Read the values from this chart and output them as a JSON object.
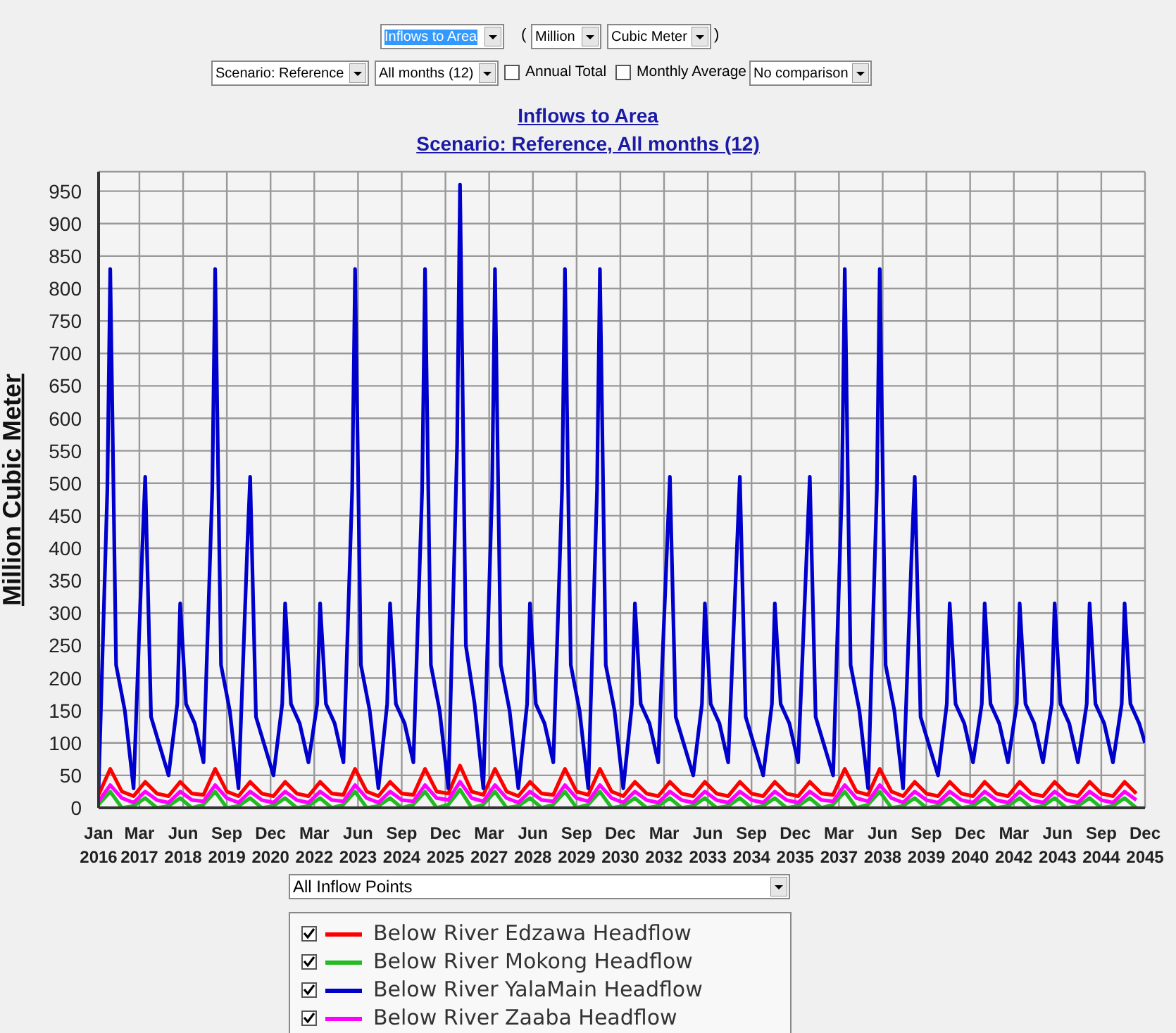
{
  "chart_data": {
    "type": "line",
    "title": "Inflows to Area",
    "subtitle": "Scenario: Reference, All months (12)",
    "ylabel": "Million Cubic Meter",
    "annotations": [
      "Inflows to Area",
      "(",
      "Million",
      "Cubic Meter",
      ")",
      "Scenario: Reference",
      "All months (12)",
      "Annual Total",
      "Monthly Average",
      "No comparison",
      "All Inflow Points"
    ],
    "xlim": [
      "2016-01",
      "2045-12"
    ],
    "ylim": [
      0,
      980
    ],
    "yticks": [
      0,
      50,
      100,
      150,
      200,
      250,
      300,
      350,
      400,
      450,
      500,
      550,
      600,
      650,
      700,
      750,
      800,
      850,
      900,
      950
    ],
    "xticks": [
      {
        "value": "2016-01",
        "label": "Jan 2016"
      },
      {
        "value": "2017-03",
        "label": "Mar 2017"
      },
      {
        "value": "2018-06",
        "label": "Jun 2018"
      },
      {
        "value": "2019-09",
        "label": "Sep 2019"
      },
      {
        "value": "2020-12",
        "label": "Dec 2020"
      },
      {
        "value": "2022-03",
        "label": "Mar 2022"
      },
      {
        "value": "2023-06",
        "label": "Jun 2023"
      },
      {
        "value": "2024-09",
        "label": "Sep 2024"
      },
      {
        "value": "2025-12",
        "label": "Dec 2025"
      },
      {
        "value": "2027-03",
        "label": "Mar 2027"
      },
      {
        "value": "2028-06",
        "label": "Jun 2028"
      },
      {
        "value": "2029-09",
        "label": "Sep 2029"
      },
      {
        "value": "2030-12",
        "label": "Dec 2030"
      },
      {
        "value": "2032-03",
        "label": "Mar 2032"
      },
      {
        "value": "2033-06",
        "label": "Jun 2033"
      },
      {
        "value": "2034-09",
        "label": "Sep 2034"
      },
      {
        "value": "2035-12",
        "label": "Dec 2035"
      },
      {
        "value": "2037-03",
        "label": "Mar 2037"
      },
      {
        "value": "2038-06",
        "label": "Jun 2038"
      },
      {
        "value": "2039-09",
        "label": "Sep 2039"
      },
      {
        "value": "2040-12",
        "label": "Dec 2040"
      },
      {
        "value": "2042-03",
        "label": "Mar 2042"
      },
      {
        "value": "2043-06",
        "label": "Jun 2043"
      },
      {
        "value": "2044-09",
        "label": "Sep 2044"
      },
      {
        "value": "2045-12",
        "label": "Dec 2045"
      }
    ],
    "grid": true,
    "legend": "bottom",
    "x": [
      "2016-01",
      "2016-05",
      "2016-09",
      "2017-01",
      "2017-05",
      "2017-09",
      "2018-01",
      "2018-05",
      "2018-09",
      "2019-01",
      "2019-05",
      "2019-09",
      "2020-01",
      "2020-05",
      "2020-09",
      "2021-01",
      "2021-05",
      "2021-09",
      "2022-01",
      "2022-05",
      "2022-09",
      "2023-01",
      "2023-05",
      "2023-09",
      "2024-01",
      "2024-05",
      "2024-09",
      "2025-01",
      "2025-05",
      "2025-09",
      "2026-01",
      "2026-05",
      "2026-09",
      "2027-01",
      "2027-05",
      "2027-09",
      "2028-01",
      "2028-05",
      "2028-09",
      "2029-01",
      "2029-05",
      "2029-09",
      "2030-01",
      "2030-05",
      "2030-09",
      "2031-01",
      "2031-05",
      "2031-09",
      "2032-01",
      "2032-05",
      "2032-09",
      "2033-01",
      "2033-05",
      "2033-09",
      "2034-01",
      "2034-05",
      "2034-09",
      "2035-01",
      "2035-05",
      "2035-09",
      "2036-01",
      "2036-05",
      "2036-09",
      "2037-01",
      "2037-05",
      "2037-09",
      "2038-01",
      "2038-05",
      "2038-09",
      "2039-01",
      "2039-05",
      "2039-09",
      "2040-01",
      "2040-05",
      "2040-09",
      "2041-01",
      "2041-05",
      "2041-09",
      "2042-01",
      "2042-05",
      "2042-09",
      "2043-01",
      "2043-05",
      "2043-09",
      "2044-01",
      "2044-05",
      "2044-09",
      "2045-01",
      "2045-05",
      "2045-09"
    ],
    "series": [
      {
        "name": "Below River Edzawa Headflow",
        "color": "#ff0000",
        "values": [
          20,
          60,
          25,
          18,
          40,
          22,
          18,
          40,
          22,
          20,
          60,
          25,
          18,
          40,
          22,
          18,
          40,
          22,
          18,
          40,
          22,
          20,
          60,
          25,
          18,
          40,
          22,
          20,
          60,
          25,
          22,
          65,
          25,
          20,
          60,
          25,
          18,
          40,
          22,
          20,
          60,
          25,
          20,
          60,
          25,
          18,
          40,
          22,
          18,
          40,
          22,
          18,
          40,
          22,
          18,
          40,
          22,
          18,
          40,
          22,
          18,
          40,
          22,
          20,
          60,
          25,
          20,
          60,
          25,
          18,
          40,
          22,
          18,
          40,
          22,
          18,
          40,
          22,
          18,
          40,
          22,
          18,
          40,
          22,
          18,
          40,
          22,
          18,
          40,
          22
        ]
      },
      {
        "name": "Below River Mokong Headflow",
        "color": "#22bb22",
        "values": [
          5,
          25,
          0,
          3,
          15,
          0,
          3,
          15,
          0,
          5,
          25,
          0,
          3,
          15,
          0,
          3,
          15,
          0,
          3,
          15,
          0,
          5,
          25,
          0,
          3,
          15,
          0,
          5,
          25,
          0,
          5,
          28,
          0,
          5,
          25,
          0,
          3,
          15,
          0,
          5,
          25,
          0,
          5,
          25,
          0,
          3,
          15,
          0,
          3,
          15,
          0,
          3,
          15,
          0,
          3,
          15,
          0,
          3,
          15,
          0,
          3,
          15,
          0,
          5,
          25,
          0,
          5,
          25,
          0,
          3,
          15,
          0,
          3,
          15,
          0,
          3,
          15,
          0,
          3,
          15,
          0,
          3,
          15,
          0,
          3,
          15,
          0,
          3,
          15,
          0
        ]
      },
      {
        "name": "Below River YalaMain Headflow",
        "color": "#0000cc",
        "x": [
          "2016-01",
          "2016-04",
          "2016-05",
          "2016-07",
          "2016-10",
          "2017-01",
          "2017-04",
          "2017-05",
          "2017-07",
          "2017-10",
          "2018-01",
          "2018-04",
          "2018-05",
          "2018-07",
          "2018-10",
          "2019-01",
          "2019-04",
          "2019-05",
          "2019-07",
          "2019-10",
          "2020-01",
          "2020-04",
          "2020-05",
          "2020-07",
          "2020-10",
          "2021-01",
          "2021-04",
          "2021-05",
          "2021-07",
          "2021-10",
          "2022-01",
          "2022-04",
          "2022-05",
          "2022-07",
          "2022-10",
          "2023-01",
          "2023-04",
          "2023-05",
          "2023-07",
          "2023-10",
          "2024-01",
          "2024-04",
          "2024-05",
          "2024-07",
          "2024-10",
          "2025-01",
          "2025-04",
          "2025-05",
          "2025-07",
          "2025-10",
          "2026-01",
          "2026-04",
          "2026-05",
          "2026-07",
          "2026-10",
          "2027-01",
          "2027-04",
          "2027-05",
          "2027-07",
          "2027-10",
          "2028-01",
          "2028-04",
          "2028-05",
          "2028-07",
          "2028-10",
          "2029-01",
          "2029-04",
          "2029-05",
          "2029-07",
          "2029-10",
          "2030-01",
          "2030-04",
          "2030-05",
          "2030-07",
          "2030-10",
          "2031-01",
          "2031-04",
          "2031-05",
          "2031-07",
          "2031-10",
          "2032-01",
          "2032-04",
          "2032-05",
          "2032-07",
          "2032-10",
          "2033-01",
          "2033-04",
          "2033-05",
          "2033-07",
          "2033-10",
          "2034-01",
          "2034-04",
          "2034-05",
          "2034-07",
          "2034-10",
          "2035-01",
          "2035-04",
          "2035-05",
          "2035-07",
          "2035-10",
          "2036-01",
          "2036-04",
          "2036-05",
          "2036-07",
          "2036-10",
          "2037-01",
          "2037-04",
          "2037-05",
          "2037-07",
          "2037-10",
          "2038-01",
          "2038-04",
          "2038-05",
          "2038-07",
          "2038-10",
          "2039-01",
          "2039-04",
          "2039-05",
          "2039-07",
          "2039-10",
          "2040-01",
          "2040-04",
          "2040-05",
          "2040-07",
          "2040-10",
          "2041-01",
          "2041-04",
          "2041-05",
          "2041-07",
          "2041-10",
          "2042-01",
          "2042-04",
          "2042-05",
          "2042-07",
          "2042-10",
          "2043-01",
          "2043-04",
          "2043-05",
          "2043-07",
          "2043-10",
          "2044-01",
          "2044-04",
          "2044-05",
          "2044-07",
          "2044-10",
          "2045-01",
          "2045-04",
          "2045-05",
          "2045-07",
          "2045-10",
          "2045-12"
        ],
        "values": [
          30,
          490,
          830,
          220,
          150,
          30,
          400,
          510,
          140,
          95,
          50,
          160,
          315,
          160,
          130,
          70,
          490,
          830,
          220,
          150,
          30,
          400,
          510,
          140,
          95,
          50,
          160,
          315,
          160,
          130,
          70,
          160,
          315,
          160,
          130,
          70,
          490,
          830,
          220,
          150,
          30,
          160,
          315,
          160,
          130,
          70,
          490,
          830,
          220,
          150,
          30,
          560,
          960,
          250,
          160,
          30,
          490,
          830,
          220,
          150,
          30,
          160,
          315,
          160,
          130,
          70,
          490,
          830,
          220,
          150,
          30,
          490,
          830,
          220,
          150,
          30,
          160,
          315,
          160,
          130,
          70,
          400,
          510,
          140,
          95,
          50,
          160,
          315,
          160,
          130,
          70,
          400,
          510,
          140,
          95,
          50,
          160,
          315,
          160,
          130,
          70,
          400,
          510,
          140,
          95,
          50,
          490,
          830,
          220,
          150,
          30,
          490,
          830,
          220,
          150,
          30,
          400,
          510,
          140,
          95,
          50,
          160,
          315,
          160,
          130,
          70,
          160,
          315,
          160,
          130,
          70,
          160,
          315,
          160,
          130,
          70,
          160,
          315,
          160,
          130,
          70,
          160,
          315,
          160,
          130,
          70,
          160,
          315,
          160,
          130,
          100
        ]
      },
      {
        "name": "Below River Zaaba Headflow",
        "color": "#ff00ff",
        "values": [
          10,
          35,
          15,
          8,
          25,
          12,
          8,
          25,
          12,
          10,
          35,
          15,
          8,
          25,
          12,
          8,
          25,
          12,
          8,
          25,
          12,
          10,
          35,
          15,
          8,
          25,
          12,
          10,
          35,
          15,
          12,
          40,
          15,
          10,
          35,
          15,
          8,
          25,
          12,
          10,
          35,
          15,
          10,
          35,
          15,
          8,
          25,
          12,
          8,
          25,
          12,
          8,
          25,
          12,
          8,
          25,
          12,
          8,
          25,
          12,
          8,
          25,
          12,
          10,
          35,
          15,
          10,
          35,
          15,
          8,
          25,
          12,
          8,
          25,
          12,
          8,
          25,
          12,
          8,
          25,
          12,
          8,
          25,
          12,
          8,
          25,
          12,
          8,
          25,
          12
        ]
      }
    ]
  }
}
